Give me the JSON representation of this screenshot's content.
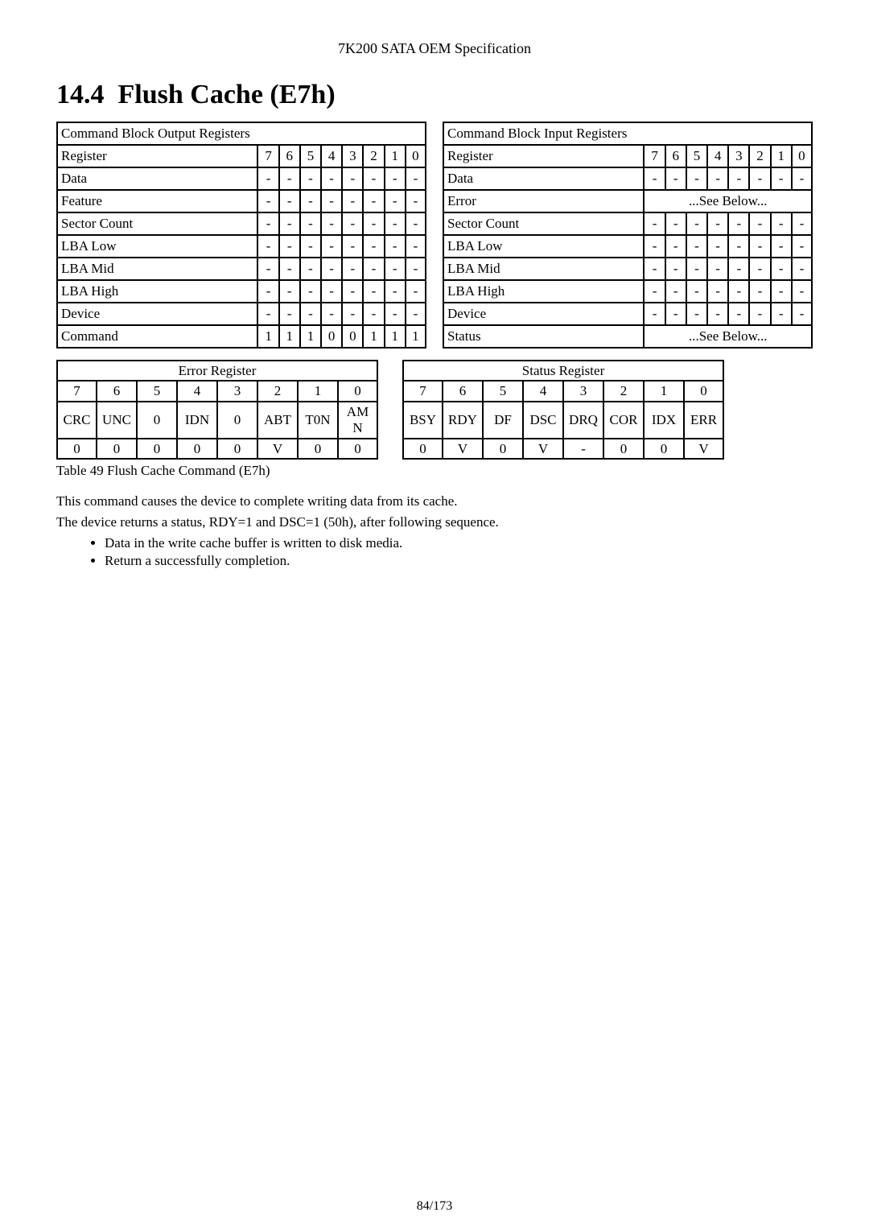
{
  "header": {
    "spec_title": "7K200 SATA OEM Specification"
  },
  "section": {
    "number": "14.4",
    "title": "Flush Cache (E7h)"
  },
  "output_regs": {
    "title": "Command Block Output Registers",
    "colhead": "Register",
    "bits": [
      "7",
      "6",
      "5",
      "4",
      "3",
      "2",
      "1",
      "0"
    ],
    "rows": [
      {
        "label": "Data",
        "cells": [
          "-",
          "-",
          "-",
          "-",
          "-",
          "-",
          "-",
          "-"
        ]
      },
      {
        "label": "Feature",
        "cells": [
          "-",
          "-",
          "-",
          "-",
          "-",
          "-",
          "-",
          "-"
        ]
      },
      {
        "label": "Sector Count",
        "cells": [
          "-",
          "-",
          "-",
          "-",
          "-",
          "-",
          "-",
          "-"
        ]
      },
      {
        "label": "LBA Low",
        "cells": [
          "-",
          "-",
          "-",
          "-",
          "-",
          "-",
          "-",
          "-"
        ]
      },
      {
        "label": "LBA Mid",
        "cells": [
          "-",
          "-",
          "-",
          "-",
          "-",
          "-",
          "-",
          "-"
        ]
      },
      {
        "label": "LBA High",
        "cells": [
          "-",
          "-",
          "-",
          "-",
          "-",
          "-",
          "-",
          "-"
        ]
      },
      {
        "label": "Device",
        "cells": [
          "-",
          "-",
          "-",
          "-",
          "-",
          "-",
          "-",
          "-"
        ]
      },
      {
        "label": "Command",
        "cells": [
          "1",
          "1",
          "1",
          "0",
          "0",
          "1",
          "1",
          "1"
        ]
      }
    ]
  },
  "input_regs": {
    "title": "Command Block Input Registers",
    "colhead": "Register",
    "bits": [
      "7",
      "6",
      "5",
      "4",
      "3",
      "2",
      "1",
      "0"
    ],
    "rows": [
      {
        "label": "Data",
        "cells": [
          "-",
          "-",
          "-",
          "-",
          "-",
          "-",
          "-",
          "-"
        ],
        "span": null
      },
      {
        "label": "Error",
        "cells": null,
        "span": "...See Below..."
      },
      {
        "label": "Sector Count",
        "cells": [
          "-",
          "-",
          "-",
          "-",
          "-",
          "-",
          "-",
          "-"
        ],
        "span": null
      },
      {
        "label": "LBA Low",
        "cells": [
          "-",
          "-",
          "-",
          "-",
          "-",
          "-",
          "-",
          "-"
        ],
        "span": null
      },
      {
        "label": "LBA Mid",
        "cells": [
          "-",
          "-",
          "-",
          "-",
          "-",
          "-",
          "-",
          "-"
        ],
        "span": null
      },
      {
        "label": "LBA High",
        "cells": [
          "-",
          "-",
          "-",
          "-",
          "-",
          "-",
          "-",
          "-"
        ],
        "span": null
      },
      {
        "label": "Device",
        "cells": [
          "-",
          "-",
          "-",
          "-",
          "-",
          "-",
          "-",
          "-"
        ],
        "span": null
      },
      {
        "label": "Status",
        "cells": null,
        "span": "...See Below..."
      }
    ]
  },
  "error_register": {
    "title": "Error Register",
    "bit_nums": [
      "7",
      "6",
      "5",
      "4",
      "3",
      "2",
      "1",
      "0"
    ],
    "labels": [
      "CRC",
      "UNC",
      "0",
      "IDN",
      "0",
      "ABT",
      "T0N",
      "AMN"
    ],
    "values": [
      "0",
      "0",
      "0",
      "0",
      "0",
      "V",
      "0",
      "0"
    ]
  },
  "status_register": {
    "title": "Status Register",
    "bit_nums": [
      "7",
      "6",
      "5",
      "4",
      "3",
      "2",
      "1",
      "0"
    ],
    "labels": [
      "BSY",
      "RDY",
      "DF",
      "DSC",
      "DRQ",
      "COR",
      "IDX",
      "ERR"
    ],
    "values": [
      "0",
      "V",
      "0",
      "V",
      "-",
      "0",
      "0",
      "V"
    ]
  },
  "caption": "Table 49 Flush Cache Command (E7h)",
  "paragraphs": {
    "p1": "This command causes the device to complete writing data from its cache.",
    "p2": "The device returns a status, RDY=1 and DSC=1 (50h), after following sequence."
  },
  "bullets": {
    "b1": "Data in the write cache buffer is written to disk media.",
    "b2": "Return a successfully completion."
  },
  "footer": {
    "page": "84/173"
  }
}
